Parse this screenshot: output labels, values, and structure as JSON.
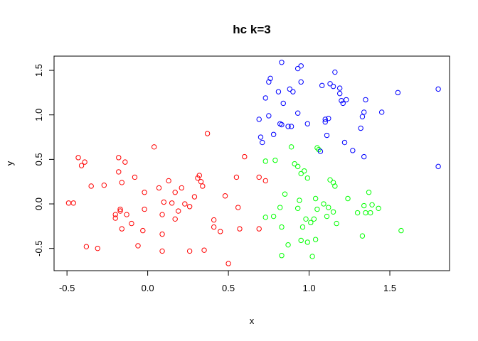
{
  "chart_data": {
    "type": "scatter",
    "title": "hc k=3",
    "xlabel": "x",
    "ylabel": "y",
    "xlim": [
      -0.58,
      1.87
    ],
    "ylim": [
      -0.75,
      1.66
    ],
    "xticks": [
      -0.5,
      0.0,
      0.5,
      1.0,
      1.5
    ],
    "xtick_labels": [
      "-0.5",
      "0.0",
      "0.5",
      "1.0",
      "1.5"
    ],
    "yticks": [
      -0.5,
      0.0,
      0.5,
      1.0,
      1.5
    ],
    "ytick_labels": [
      "-0.5",
      "0.0",
      "0.5",
      "1.0",
      "1.5"
    ],
    "grid": false,
    "series": [
      {
        "color": "#ff0000",
        "points": [
          [
            -0.49,
            0.01
          ],
          [
            -0.46,
            0.01
          ],
          [
            -0.43,
            0.52
          ],
          [
            -0.41,
            0.43
          ],
          [
            -0.39,
            0.47
          ],
          [
            -0.38,
            -0.48
          ],
          [
            -0.35,
            0.2
          ],
          [
            -0.31,
            -0.5
          ],
          [
            -0.27,
            0.21
          ],
          [
            -0.2,
            -0.12
          ],
          [
            -0.2,
            -0.16
          ],
          [
            -0.18,
            0.52
          ],
          [
            -0.18,
            0.36
          ],
          [
            -0.17,
            -0.06
          ],
          [
            -0.17,
            -0.08
          ],
          [
            -0.16,
            -0.28
          ],
          [
            -0.16,
            0.24
          ],
          [
            -0.14,
            0.47
          ],
          [
            -0.13,
            -0.12
          ],
          [
            -0.1,
            -0.22
          ],
          [
            -0.08,
            0.3
          ],
          [
            -0.06,
            -0.47
          ],
          [
            -0.03,
            -0.3
          ],
          [
            -0.02,
            0.13
          ],
          [
            -0.02,
            -0.06
          ],
          [
            0.04,
            0.64
          ],
          [
            0.07,
            0.18
          ],
          [
            0.09,
            -0.12
          ],
          [
            0.09,
            -0.34
          ],
          [
            0.09,
            -0.53
          ],
          [
            0.1,
            0.02
          ],
          [
            0.13,
            0.26
          ],
          [
            0.15,
            0.01
          ],
          [
            0.17,
            -0.17
          ],
          [
            0.17,
            0.13
          ],
          [
            0.19,
            -0.08
          ],
          [
            0.21,
            0.18
          ],
          [
            0.23,
            0.0
          ],
          [
            0.26,
            -0.03
          ],
          [
            0.26,
            -0.53
          ],
          [
            0.29,
            0.08
          ],
          [
            0.31,
            0.29
          ],
          [
            0.32,
            0.32
          ],
          [
            0.33,
            0.25
          ],
          [
            0.34,
            0.2
          ],
          [
            0.35,
            -0.52
          ],
          [
            0.37,
            0.79
          ],
          [
            0.41,
            -0.18
          ],
          [
            0.41,
            -0.26
          ],
          [
            0.45,
            -0.31
          ],
          [
            0.48,
            0.09
          ],
          [
            0.5,
            -0.67
          ],
          [
            0.55,
            0.3
          ],
          [
            0.56,
            -0.04
          ],
          [
            0.57,
            -0.28
          ],
          [
            0.6,
            0.53
          ],
          [
            0.69,
            0.3
          ],
          [
            0.69,
            -0.28
          ],
          [
            0.73,
            0.26
          ]
        ]
      },
      {
        "color": "#00ff00",
        "points": [
          [
            0.73,
            0.48
          ],
          [
            0.73,
            -0.15
          ],
          [
            0.78,
            -0.14
          ],
          [
            0.79,
            0.49
          ],
          [
            0.82,
            -0.04
          ],
          [
            0.83,
            -0.26
          ],
          [
            0.83,
            -0.58
          ],
          [
            0.85,
            0.11
          ],
          [
            0.87,
            -0.46
          ],
          [
            0.89,
            0.64
          ],
          [
            0.91,
            0.45
          ],
          [
            0.93,
            0.42
          ],
          [
            0.93,
            -0.05
          ],
          [
            0.94,
            0.04
          ],
          [
            0.95,
            0.34
          ],
          [
            0.95,
            -0.41
          ],
          [
            0.96,
            -0.26
          ],
          [
            0.97,
            0.37
          ],
          [
            0.98,
            -0.17
          ],
          [
            0.99,
            0.29
          ],
          [
            0.99,
            -0.43
          ],
          [
            1.01,
            -0.21
          ],
          [
            1.02,
            -0.59
          ],
          [
            1.03,
            -0.17
          ],
          [
            1.04,
            -0.4
          ],
          [
            1.04,
            0.06
          ],
          [
            1.05,
            -0.06
          ],
          [
            1.05,
            0.63
          ],
          [
            1.06,
            0.61
          ],
          [
            1.09,
            0.0
          ],
          [
            1.11,
            -0.14
          ],
          [
            1.12,
            -0.04
          ],
          [
            1.13,
            0.27
          ],
          [
            1.15,
            0.24
          ],
          [
            1.15,
            -0.09
          ],
          [
            1.16,
            0.2
          ],
          [
            1.17,
            -0.22
          ],
          [
            1.24,
            0.06
          ],
          [
            1.3,
            -0.1
          ],
          [
            1.33,
            -0.36
          ],
          [
            1.34,
            -0.02
          ],
          [
            1.35,
            -0.1
          ],
          [
            1.37,
            0.13
          ],
          [
            1.38,
            -0.1
          ],
          [
            1.39,
            -0.01
          ],
          [
            1.43,
            -0.05
          ],
          [
            1.57,
            -0.3
          ]
        ]
      },
      {
        "color": "#0000ff",
        "points": [
          [
            0.69,
            0.95
          ],
          [
            0.7,
            0.75
          ],
          [
            0.71,
            0.69
          ],
          [
            0.73,
            1.19
          ],
          [
            0.75,
            0.99
          ],
          [
            0.75,
            1.37
          ],
          [
            0.76,
            1.41
          ],
          [
            0.78,
            0.78
          ],
          [
            0.81,
            1.26
          ],
          [
            0.82,
            0.9
          ],
          [
            0.83,
            0.89
          ],
          [
            0.83,
            1.59
          ],
          [
            0.84,
            1.13
          ],
          [
            0.87,
            0.87
          ],
          [
            0.88,
            1.29
          ],
          [
            0.89,
            0.87
          ],
          [
            0.9,
            1.26
          ],
          [
            0.93,
            1.52
          ],
          [
            0.93,
            1.02
          ],
          [
            0.95,
            1.37
          ],
          [
            0.95,
            1.55
          ],
          [
            0.99,
            0.9
          ],
          [
            1.07,
            0.59
          ],
          [
            1.08,
            1.33
          ],
          [
            1.1,
            0.92
          ],
          [
            1.1,
            0.95
          ],
          [
            1.11,
            0.77
          ],
          [
            1.12,
            0.96
          ],
          [
            1.13,
            1.35
          ],
          [
            1.15,
            1.32
          ],
          [
            1.16,
            1.48
          ],
          [
            1.19,
            1.24
          ],
          [
            1.19,
            1.3
          ],
          [
            1.2,
            1.16
          ],
          [
            1.21,
            1.13
          ],
          [
            1.22,
            0.69
          ],
          [
            1.23,
            1.17
          ],
          [
            1.27,
            0.6
          ],
          [
            1.32,
            0.85
          ],
          [
            1.33,
            0.98
          ],
          [
            1.34,
            1.03
          ],
          [
            1.34,
            0.53
          ],
          [
            1.35,
            1.17
          ],
          [
            1.45,
            1.03
          ],
          [
            1.55,
            1.25
          ],
          [
            1.8,
            0.42
          ],
          [
            1.8,
            1.29
          ]
        ]
      }
    ]
  }
}
